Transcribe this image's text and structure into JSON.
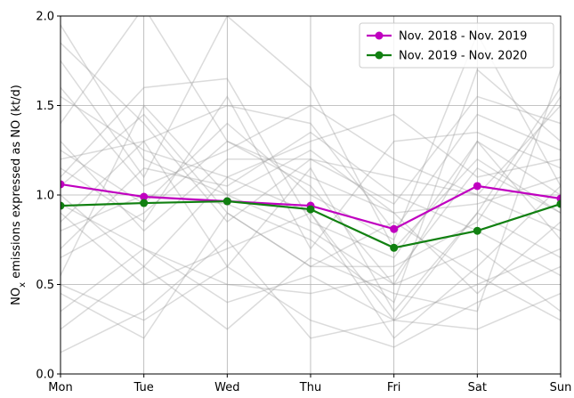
{
  "chart_data": {
    "type": "line",
    "y_label": {
      "main": "NO",
      "sub": "x",
      "rest": " emissions expressed as NO (kt/d)"
    },
    "categories": [
      "Mon",
      "Tue",
      "Wed",
      "Thu",
      "Fri",
      "Sat",
      "Sun"
    ],
    "ylim": [
      0,
      2
    ],
    "yticks": [
      {
        "value": 0,
        "label": "0.0"
      },
      0.5,
      {
        "value": 1,
        "label": "1.0"
      },
      1.5,
      {
        "value": 2,
        "label": "2.0"
      }
    ],
    "grid": true,
    "legend": "upper right",
    "background_color": "#999999",
    "background_lines": [
      [
        1.95,
        1.2,
        1.0,
        0.8,
        0.5,
        1.3,
        1.0
      ],
      [
        0.25,
        0.6,
        1.1,
        0.9,
        0.3,
        0.5,
        0.7
      ],
      [
        1.4,
        2.05,
        1.3,
        1.1,
        0.9,
        0.95,
        1.1
      ],
      [
        0.95,
        0.7,
        0.4,
        0.55,
        0.3,
        0.9,
        1.6
      ],
      [
        1.2,
        1.3,
        1.5,
        1.4,
        0.8,
        1.45,
        1.25
      ],
      [
        0.5,
        0.3,
        0.6,
        0.3,
        0.15,
        0.4,
        0.6
      ],
      [
        1.75,
        1.1,
        2.0,
        1.6,
        0.7,
        1.2,
        0.9
      ],
      [
        0.8,
        1.0,
        0.95,
        0.75,
        0.4,
        1.7,
        1.3
      ],
      [
        0.12,
        0.35,
        0.75,
        0.2,
        0.3,
        0.25,
        0.45
      ],
      [
        1.3,
        0.8,
        1.2,
        1.2,
        1.1,
        1.0,
        0.8
      ],
      [
        1.05,
        1.45,
        0.9,
        0.6,
        0.6,
        0.85,
        1.55
      ],
      [
        0.65,
        0.9,
        1.3,
        1.05,
        0.5,
        0.7,
        0.35
      ],
      [
        1.55,
        1.25,
        1.1,
        1.3,
        1.45,
        1.1,
        1.2
      ],
      [
        0.9,
        0.5,
        0.7,
        0.9,
        0.2,
        0.6,
        1.05
      ],
      [
        1.1,
        1.6,
        1.65,
        0.85,
        0.65,
        1.3,
        0.75
      ],
      [
        0.35,
        0.7,
        0.5,
        0.45,
        0.55,
        1.15,
        0.9
      ],
      [
        1.85,
        1.4,
        0.85,
        1.2,
        0.95,
        1.55,
        1.4
      ],
      [
        0.7,
        1.15,
        1.05,
        1.35,
        1.0,
        0.8,
        0.55
      ],
      [
        1.0,
        0.6,
        0.25,
        0.65,
        0.45,
        0.35,
        1.7
      ],
      [
        1.25,
        0.95,
        1.4,
        1.0,
        0.75,
        1.9,
        1.05
      ],
      [
        0.45,
        0.2,
        0.9,
        0.6,
        0.85,
        0.55,
        0.3
      ],
      [
        1.6,
        1.05,
        1.25,
        1.5,
        1.2,
        1.0,
        1.5
      ],
      [
        0.85,
        1.3,
        0.6,
        1.15,
        0.35,
        0.9,
        0.65
      ],
      [
        1.15,
        0.85,
        1.55,
        0.7,
        1.3,
        1.35,
        1.15
      ],
      [
        0.55,
        1.5,
        1.0,
        1.25,
        0.9,
        0.45,
        0.85
      ]
    ],
    "series": [
      {
        "name": "Nov. 2018 - Nov. 2019",
        "color": "#c000c0",
        "values": [
          1.06,
          0.99,
          0.965,
          0.94,
          0.81,
          1.05,
          0.98
        ]
      },
      {
        "name": "Nov. 2019 - Nov. 2020",
        "color": "#118011",
        "values": [
          0.94,
          0.955,
          0.965,
          0.92,
          0.705,
          0.8,
          0.95
        ]
      }
    ]
  }
}
